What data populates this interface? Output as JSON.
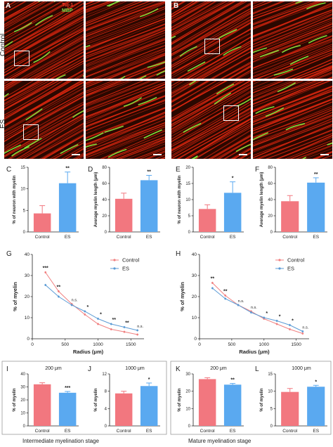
{
  "images": {
    "panel_A_label": "A",
    "panel_B_label": "B",
    "row_labels": [
      "Control",
      "ES"
    ],
    "stain_labels": {
      "tuj1": "Tuj-1",
      "mbp": "MBP"
    },
    "colors": {
      "axon": "#d8260f",
      "myelin": "#7fe03a",
      "background": "#2a0800"
    }
  },
  "stages": {
    "intermediate": "Intermediate myelination stage",
    "mature": "Mature myelination stage"
  },
  "colors": {
    "control": "#f2777f",
    "es": "#5aa9f0",
    "control_line": "#f08080",
    "es_line": "#5b9bd5"
  },
  "chart_data": [
    {
      "id": "C",
      "type": "bar",
      "label": "C",
      "categories": [
        "Control",
        "ES"
      ],
      "values": [
        4.3,
        11.3
      ],
      "errors": [
        1.8,
        2.6
      ],
      "ylabel": "% of neuron with myelin",
      "ylim": [
        0,
        15
      ],
      "yticks": [
        0,
        5,
        10,
        15
      ],
      "sig": [
        "",
        "**"
      ]
    },
    {
      "id": "D",
      "type": "bar",
      "label": "D",
      "categories": [
        "Control",
        "ES"
      ],
      "values": [
        41,
        64
      ],
      "errors": [
        7,
        6
      ],
      "ylabel": "Average myelin length (μm)",
      "ylim": [
        0,
        80
      ],
      "yticks": [
        0,
        20,
        40,
        60,
        80
      ],
      "sig": [
        "",
        "**"
      ]
    },
    {
      "id": "E",
      "type": "bar",
      "label": "E",
      "categories": [
        "Control",
        "ES"
      ],
      "values": [
        7.1,
        12.1
      ],
      "errors": [
        1.3,
        3.4
      ],
      "ylabel": "% of neuron with myelin",
      "ylim": [
        0,
        20
      ],
      "yticks": [
        0,
        5,
        10,
        15,
        20
      ],
      "sig": [
        "",
        "*"
      ]
    },
    {
      "id": "F",
      "type": "bar",
      "label": "F",
      "categories": [
        "Control",
        "ES"
      ],
      "values": [
        38,
        61
      ],
      "errors": [
        7,
        6
      ],
      "ylabel": "Average myelin length (μm)",
      "ylim": [
        0,
        80
      ],
      "yticks": [
        0,
        20,
        40,
        60,
        80
      ],
      "sig": [
        "",
        "**"
      ]
    },
    {
      "id": "G",
      "type": "line",
      "label": "G",
      "x": [
        200,
        400,
        600,
        800,
        1000,
        1200,
        1400,
        1600
      ],
      "series": [
        {
          "name": "Control",
          "values": [
            31.5,
            22.5,
            16.5,
            11.5,
            7.0,
            4.5,
            3.3,
            2.0
          ]
        },
        {
          "name": "ES",
          "values": [
            25.5,
            20.0,
            16.0,
            13.0,
            9.5,
            7.0,
            5.5,
            4.0
          ]
        }
      ],
      "sig": [
        "***",
        "**",
        "n.s.",
        "*",
        "*",
        "**",
        "**",
        "n.s."
      ],
      "xlabel": "Radius (μm)",
      "ylabel": "% of myelin",
      "xlim": [
        0,
        1700
      ],
      "ylim": [
        0,
        40
      ],
      "xticks": [
        0,
        500,
        1000,
        1500
      ],
      "yticks": [
        0,
        10,
        20,
        30,
        40
      ],
      "legend": "top-right"
    },
    {
      "id": "H",
      "type": "line",
      "label": "H",
      "x": [
        200,
        400,
        600,
        800,
        1000,
        1200,
        1400,
        1600
      ],
      "series": [
        {
          "name": "Control",
          "values": [
            26.5,
            20.5,
            16.0,
            13.0,
            9.5,
            7.0,
            4.5,
            2.5
          ]
        },
        {
          "name": "ES",
          "values": [
            24.0,
            19.0,
            16.0,
            12.5,
            10.0,
            8.5,
            6.5,
            3.5
          ]
        }
      ],
      "sig": [
        "**",
        "**",
        "n.s.",
        "n.s.",
        "*",
        "*",
        "*",
        "n.s."
      ],
      "xlabel": "Radius (μm)",
      "ylabel": "% of myelin",
      "xlim": [
        0,
        1700
      ],
      "ylim": [
        0,
        40
      ],
      "xticks": [
        0,
        500,
        1000,
        1500
      ],
      "yticks": [
        0,
        10,
        20,
        30,
        40
      ],
      "legend": "top-right"
    },
    {
      "id": "I",
      "type": "bar",
      "label": "I",
      "title": "200 μm",
      "categories": [
        "Control",
        "ES"
      ],
      "values": [
        32,
        25.5
      ],
      "errors": [
        1.2,
        1.0
      ],
      "ylabel": "% of myelin",
      "ylim": [
        0,
        40
      ],
      "yticks": [
        0,
        10,
        20,
        30,
        40
      ],
      "sig": [
        "",
        "***"
      ]
    },
    {
      "id": "J",
      "type": "bar",
      "label": "J",
      "title": "1000 μm",
      "categories": [
        "Control",
        "ES"
      ],
      "values": [
        7.5,
        9.2
      ],
      "errors": [
        0.5,
        0.7
      ],
      "ylabel": "% of myelin",
      "ylim": [
        0,
        12
      ],
      "yticks": [
        0,
        4,
        8,
        12
      ],
      "sig": [
        "",
        "*"
      ]
    },
    {
      "id": "K",
      "type": "bar",
      "label": "K",
      "title": "200 μm",
      "categories": [
        "Control",
        "ES"
      ],
      "values": [
        27,
        23.8
      ],
      "errors": [
        0.8,
        0.7
      ],
      "ylabel": "% of myelin",
      "ylim": [
        0,
        30
      ],
      "yticks": [
        0,
        10,
        20,
        30
      ],
      "sig": [
        "",
        "**"
      ]
    },
    {
      "id": "L",
      "type": "bar",
      "label": "L",
      "title": "1000 μm",
      "categories": [
        "Control",
        "ES"
      ],
      "values": [
        9.8,
        11.3
      ],
      "errors": [
        1.0,
        0.4
      ],
      "ylabel": "% of myelin",
      "ylim": [
        0,
        15
      ],
      "yticks": [
        0,
        5,
        10,
        15
      ],
      "sig": [
        "",
        "*"
      ]
    }
  ]
}
